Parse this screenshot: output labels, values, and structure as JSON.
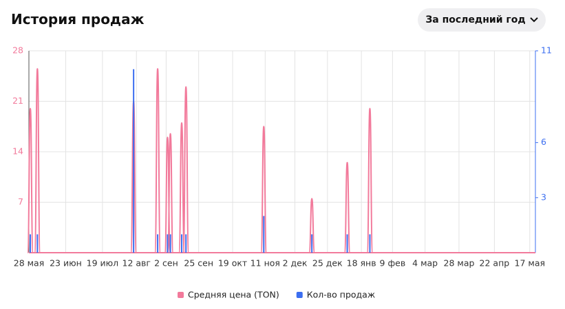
{
  "header": {
    "title": "История продаж",
    "period_button": "За последний год"
  },
  "chart_data": {
    "type": "spike",
    "x": [
      1,
      6,
      74,
      91,
      98,
      100,
      108,
      111,
      166,
      200,
      225,
      241
    ],
    "series": [
      {
        "name": "Средняя цена (TON)",
        "color": "#f27a9b",
        "values": [
          20,
          25.5,
          21,
          25.5,
          16,
          16.5,
          18,
          23,
          17.5,
          7.5,
          12.5,
          20
        ]
      },
      {
        "name": "Кол-во продаж",
        "color": "#3b6ef0",
        "axis": "y2",
        "values": [
          1,
          1,
          10,
          1,
          1,
          1,
          1,
          1,
          2,
          1,
          1,
          1
        ]
      }
    ],
    "xlim": [
      0,
      358
    ],
    "xticks": [
      {
        "value": 0,
        "label": "28 мая"
      },
      {
        "value": 26,
        "label": "23 июн"
      },
      {
        "value": 52,
        "label": "19 июл"
      },
      {
        "value": 76,
        "label": "12 авг"
      },
      {
        "value": 97,
        "label": "2 сен"
      },
      {
        "value": 120,
        "label": "25 сен"
      },
      {
        "value": 144,
        "label": "19 окт"
      },
      {
        "value": 167,
        "label": "11 ноя"
      },
      {
        "value": 188,
        "label": "2 дек"
      },
      {
        "value": 211,
        "label": "25 дек"
      },
      {
        "value": 235,
        "label": "18 янв"
      },
      {
        "value": 257,
        "label": "9 фев"
      },
      {
        "value": 280,
        "label": "4 мар"
      },
      {
        "value": 304,
        "label": "28 мар"
      },
      {
        "value": 329,
        "label": "22 апр"
      },
      {
        "value": 354,
        "label": "17 мая"
      }
    ],
    "ylim": [
      0,
      28
    ],
    "yticks": [
      7,
      14,
      21,
      28
    ],
    "y2lim": [
      0,
      11
    ],
    "y2ticks": [
      3,
      6,
      11
    ],
    "grid": true
  }
}
